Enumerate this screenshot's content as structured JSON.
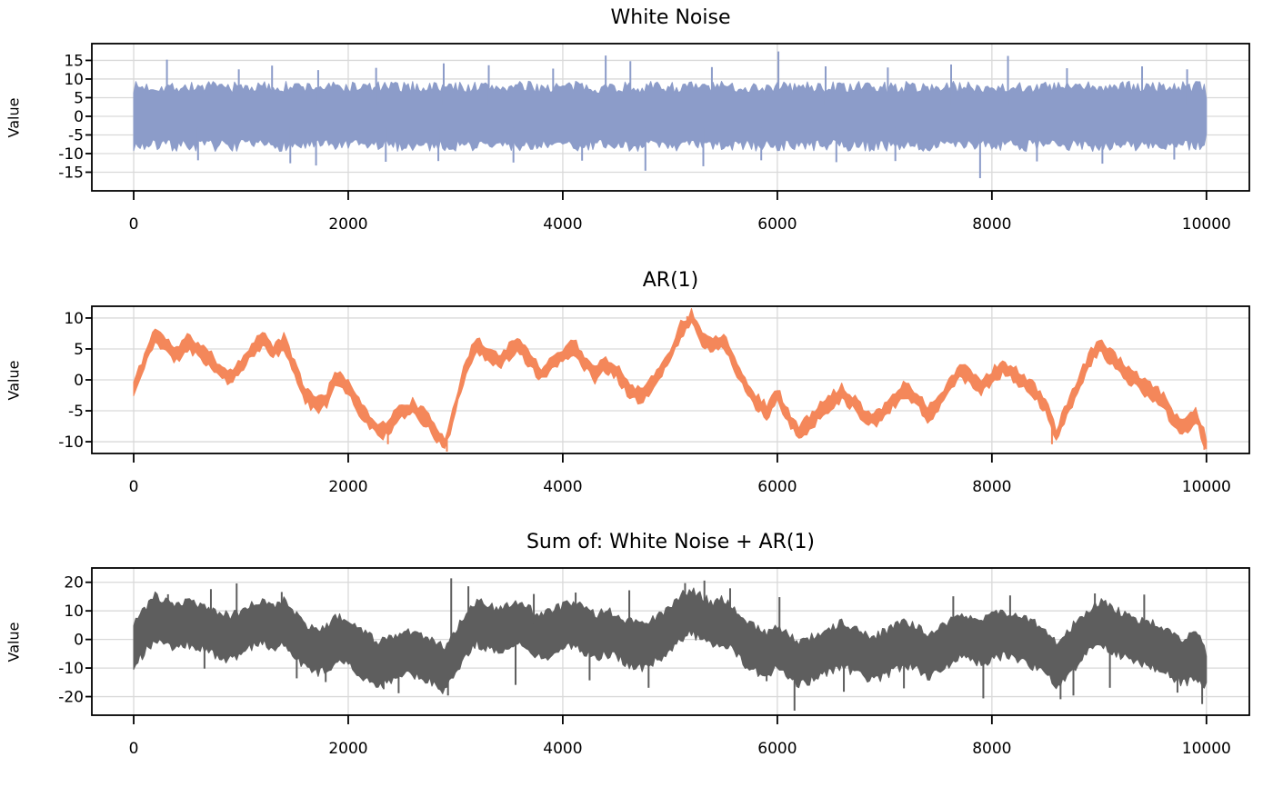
{
  "figure": {
    "background": "#ffffff",
    "colors": {
      "grid": "#d9d9d9",
      "spine": "#000000",
      "tick_text": "#000000"
    }
  },
  "chart_data": [
    {
      "id": "white-noise",
      "type": "line",
      "title": "White Noise",
      "ylabel": "Value",
      "series_color": "#8c9cc9",
      "n_points": 10000,
      "x_range": [
        0,
        10000
      ],
      "x_ticks": [
        0,
        2000,
        4000,
        6000,
        8000,
        10000
      ],
      "y_ticks": [
        15,
        10,
        5,
        0,
        -5,
        -10,
        -15
      ],
      "xlim": [
        -390,
        10400
      ],
      "ylim": [
        -20,
        19.5
      ],
      "grid": true,
      "band": {
        "x_step": 100,
        "center": 0,
        "halfwidth": 7.8,
        "edge_jitter": 1.6,
        "substeps": 5,
        "seed": 7
      },
      "spikes_top": [
        [
          310,
          15.2
        ],
        [
          980,
          12.6
        ],
        [
          1290,
          13.6
        ],
        [
          1720,
          12.4
        ],
        [
          2260,
          13.0
        ],
        [
          2890,
          14.2
        ],
        [
          3310,
          13.7
        ],
        [
          3910,
          12.8
        ],
        [
          4400,
          16.3
        ],
        [
          4630,
          14.8
        ],
        [
          5390,
          13.2
        ],
        [
          6010,
          17.4
        ],
        [
          6450,
          13.4
        ],
        [
          7030,
          13.1
        ],
        [
          7620,
          13.9
        ],
        [
          8150,
          16.2
        ],
        [
          8700,
          12.9
        ],
        [
          9400,
          13.4
        ],
        [
          9820,
          12.6
        ]
      ],
      "spikes_bottom": [
        [
          600,
          -11.8
        ],
        [
          1460,
          -12.6
        ],
        [
          1700,
          -13.2
        ],
        [
          2350,
          -12.2
        ],
        [
          2840,
          -12.0
        ],
        [
          3540,
          -12.4
        ],
        [
          4180,
          -11.9
        ],
        [
          4770,
          -14.6
        ],
        [
          5310,
          -13.4
        ],
        [
          5850,
          -11.8
        ],
        [
          6550,
          -12.3
        ],
        [
          7100,
          -12.0
        ],
        [
          7890,
          -16.6
        ],
        [
          8420,
          -12.1
        ],
        [
          9030,
          -12.7
        ],
        [
          9700,
          -11.6
        ]
      ]
    },
    {
      "id": "ar1",
      "type": "line",
      "title": "AR(1)",
      "ylabel": "Value",
      "series_color": "#f4875a",
      "n_points": 10000,
      "x_range": [
        0,
        10000
      ],
      "x_ticks": [
        0,
        2000,
        4000,
        6000,
        8000,
        10000
      ],
      "y_ticks": [
        10,
        5,
        0,
        -5,
        -10
      ],
      "xlim": [
        -390,
        10400
      ],
      "ylim": [
        -11.9,
        11.9
      ],
      "grid": true,
      "band": {
        "x_step": 100,
        "center": [
          -1.5,
          3,
          7.5,
          5.5,
          4,
          6,
          5,
          3.5,
          1.5,
          0.5,
          2,
          5,
          6.5,
          4.5,
          6,
          2,
          -2.5,
          -4,
          -3,
          0.5,
          -1,
          -4.5,
          -6.5,
          -8.5,
          -7,
          -5,
          -4.5,
          -6,
          -8,
          -10.5,
          -4,
          2,
          6,
          4,
          3,
          4.5,
          5.5,
          3,
          1,
          2.5,
          4,
          5.5,
          3,
          1,
          2.5,
          1.5,
          -1,
          -2.5,
          -1.5,
          1,
          4,
          8,
          10,
          7,
          5.5,
          6.5,
          3,
          -1,
          -3.5,
          -5,
          -2.5,
          -6,
          -8.5,
          -7,
          -5,
          -3.5,
          -2,
          -3.5,
          -5.5,
          -6.5,
          -5,
          -3,
          -1.5,
          -3,
          -5.5,
          -4,
          -1,
          1.5,
          0.5,
          -1,
          0.5,
          2,
          1,
          -0.5,
          -2,
          -4,
          -9,
          -5,
          -1,
          3,
          5.5,
          4,
          2,
          0.5,
          -1,
          -2,
          -3.5,
          -6.5,
          -7.5,
          -5.5,
          -10.5
        ],
        "halfwidth": 1.1,
        "edge_jitter": 0.6,
        "substeps": 4,
        "seed": 11
      },
      "spikes_top": [
        [
          5160,
          10.3
        ]
      ],
      "spikes_bottom": [
        [
          2370,
          -10.4
        ],
        [
          2920,
          -11.6
        ],
        [
          8560,
          -10.4
        ],
        [
          9980,
          -11.3
        ]
      ]
    },
    {
      "id": "sum",
      "type": "line",
      "title": "Sum of: White Noise + AR(1)",
      "ylabel": "Value",
      "series_color": "#5e5e5e",
      "n_points": 10000,
      "x_range": [
        0,
        10000
      ],
      "x_ticks": [
        0,
        2000,
        4000,
        6000,
        8000,
        10000
      ],
      "y_ticks": [
        20,
        10,
        0,
        -10,
        -20
      ],
      "xlim": [
        -390,
        10400
      ],
      "ylim": [
        -26.5,
        25
      ],
      "grid": true,
      "band": {
        "x_step": 100,
        "center": [
          -1.5,
          3,
          7.5,
          5.5,
          4,
          6,
          5,
          3.5,
          1.5,
          0.5,
          2,
          5,
          6.5,
          4.5,
          6,
          2,
          -2.5,
          -4,
          -3,
          0.5,
          -1,
          -4.5,
          -6.5,
          -8.5,
          -7,
          -5,
          -4.5,
          -6,
          -8,
          -10.5,
          -4,
          2,
          6,
          4,
          3,
          4.5,
          5.5,
          3,
          1,
          2.5,
          4,
          5.5,
          3,
          1,
          2.5,
          1.5,
          -1,
          -2.5,
          -1.5,
          1,
          4,
          8,
          10,
          7,
          5.5,
          6.5,
          3,
          -1,
          -3.5,
          -5,
          -2.5,
          -6,
          -8.5,
          -7,
          -5,
          -3.5,
          -2,
          -3.5,
          -5.5,
          -6.5,
          -5,
          -3,
          -1.5,
          -3,
          -5.5,
          -4,
          -1,
          1.5,
          0.5,
          -1,
          0.5,
          2,
          1,
          -0.5,
          -2,
          -4,
          -9,
          -5,
          -1,
          3,
          5.5,
          4,
          2,
          0.5,
          -1,
          -2,
          -3.5,
          -6.5,
          -7.5,
          -5.5,
          -10.5
        ],
        "halfwidth": 7.6,
        "edge_jitter": 1.6,
        "substeps": 5,
        "seed": 23
      },
      "spikes_top": [
        [
          320,
          15.8
        ],
        [
          720,
          17.6
        ],
        [
          960,
          19.6
        ],
        [
          1380,
          16.6
        ],
        [
          2960,
          21.4
        ],
        [
          3120,
          18.6
        ],
        [
          3730,
          15.9
        ],
        [
          4120,
          16.4
        ],
        [
          4620,
          17.2
        ],
        [
          5140,
          19.7
        ],
        [
          5320,
          20.6
        ],
        [
          5560,
          17.9
        ],
        [
          6020,
          14.8
        ],
        [
          7640,
          15.1
        ],
        [
          8170,
          15.4
        ],
        [
          8960,
          16.1
        ],
        [
          9420,
          15.7
        ]
      ],
      "spikes_bottom": [
        [
          660,
          -10.2
        ],
        [
          1520,
          -13.6
        ],
        [
          1790,
          -14.9
        ],
        [
          2330,
          -17.4
        ],
        [
          2470,
          -18.8
        ],
        [
          2930,
          -19.6
        ],
        [
          3560,
          -15.9
        ],
        [
          4250,
          -14.3
        ],
        [
          4800,
          -16.9
        ],
        [
          5900,
          -14.6
        ],
        [
          6160,
          -24.9
        ],
        [
          6620,
          -18.3
        ],
        [
          7180,
          -17.1
        ],
        [
          7920,
          -20.6
        ],
        [
          8640,
          -20.9
        ],
        [
          8760,
          -19.6
        ],
        [
          9100,
          -16.9
        ],
        [
          9730,
          -18.6
        ],
        [
          9960,
          -22.6
        ]
      ]
    }
  ]
}
